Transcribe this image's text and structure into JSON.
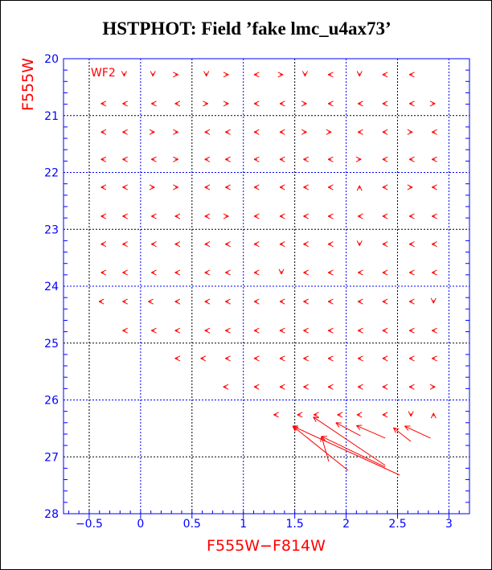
{
  "chart_data": {
    "type": "vector-field",
    "title": "HSTPHOT: Field ’fake lmc_u4ax73’",
    "xlabel": "F555W−F814W",
    "ylabel": "F555W",
    "annotation": "WF2",
    "xlim": [
      -0.75,
      3.2
    ],
    "ylim": [
      28,
      20
    ],
    "xticks": [
      "−0.5",
      "0",
      "0.5",
      "1",
      "1.5",
      "2",
      "2.5",
      "3"
    ],
    "xtick_values": [
      -0.5,
      0,
      0.5,
      1,
      1.5,
      2,
      2.5,
      3
    ],
    "yticks": [
      "20",
      "21",
      "22",
      "23",
      "24",
      "25",
      "26",
      "27",
      "28"
    ],
    "ytick_values": [
      20,
      21,
      22,
      23,
      24,
      25,
      26,
      27,
      28
    ],
    "grid": true,
    "colors": {
      "vectors": "#ff0000",
      "axes": "#0000ff",
      "grid_major": "#0000ff",
      "grid_minor": "#000000"
    },
    "short_vectors_by_row": [
      {
        "y": 20.28,
        "x": [
          -0.16,
          0.12,
          0.35,
          0.64,
          0.84,
          1.12,
          1.37,
          1.6,
          1.84,
          2.13,
          2.37,
          2.63
        ],
        "dir": "DDRDRLRDLDLL"
      },
      {
        "y": 20.79,
        "x": [
          -0.37,
          -0.16,
          0.12,
          0.35,
          0.64,
          0.84,
          1.12,
          1.37,
          1.6,
          1.84,
          2.13,
          2.37,
          2.63,
          2.85
        ],
        "dir": "LLLLRRLLRLLLLR"
      },
      {
        "y": 21.29,
        "x": [
          -0.37,
          -0.16,
          0.12,
          0.35,
          0.64,
          0.84,
          1.12,
          1.37,
          1.6,
          1.84,
          2.13,
          2.37,
          2.63,
          2.85
        ],
        "dir": "LLRRLLLLRRLLRL"
      },
      {
        "y": 21.77,
        "x": [
          -0.37,
          -0.16,
          0.12,
          0.35,
          0.64,
          0.84,
          1.12,
          1.37,
          1.6,
          1.84,
          2.13,
          2.37,
          2.63,
          2.85
        ],
        "dir": "LLLRLLLLLLRLLL"
      },
      {
        "y": 22.26,
        "x": [
          -0.37,
          -0.16,
          0.12,
          0.35,
          0.64,
          0.84,
          1.12,
          1.37,
          1.6,
          1.84,
          2.13,
          2.37,
          2.63,
          2.85
        ],
        "dir": "LLRRLLLLLLULRL"
      },
      {
        "y": 22.77,
        "x": [
          -0.37,
          -0.16,
          0.12,
          0.35,
          0.64,
          0.84,
          1.12,
          1.37,
          1.6,
          1.84,
          2.13,
          2.37,
          2.63,
          2.85
        ],
        "dir": "LLLLLRLLLLLLLL"
      },
      {
        "y": 23.26,
        "x": [
          -0.37,
          -0.16,
          0.12,
          0.35,
          0.64,
          0.84,
          1.12,
          1.37,
          1.6,
          1.84,
          2.13,
          2.37,
          2.63,
          2.85
        ],
        "dir": "LLLLLLLLLLDLLL"
      },
      {
        "y": 23.76,
        "x": [
          -0.37,
          -0.16,
          0.12,
          0.35,
          0.64,
          0.84,
          1.12,
          1.37,
          1.6,
          1.84,
          2.13,
          2.37,
          2.63,
          2.85
        ],
        "dir": "LLLLLLLDLLLLLL"
      },
      {
        "y": 24.27,
        "x": [
          -0.39,
          -0.16,
          0.09,
          0.35,
          0.64,
          0.84,
          1.12,
          1.37,
          1.6,
          1.84,
          2.13,
          2.37,
          2.63,
          2.85
        ],
        "dir": "LLLLLLLLLLLLLD"
      },
      {
        "y": 24.78,
        "x": [
          -0.16,
          0.12,
          0.35,
          0.64,
          0.84,
          1.12,
          1.37,
          1.6,
          1.84,
          2.13,
          2.37,
          2.63,
          2.85
        ],
        "dir": "LLLLLLLLLLLLL"
      },
      {
        "y": 25.27,
        "x": [
          0.35,
          0.6,
          0.84,
          1.12,
          1.37,
          1.6,
          1.84,
          2.13,
          2.37,
          2.63,
          2.85
        ],
        "dir": "LLLLLLLLLLL"
      },
      {
        "y": 25.77,
        "x": [
          0.82,
          1.12,
          1.37,
          1.6,
          1.84,
          2.13,
          2.37,
          2.63,
          2.85
        ],
        "dir": "LLLLLLLLR"
      },
      {
        "y": 26.26,
        "x": [
          1.31,
          1.54,
          1.7,
          1.93,
          2.12,
          2.37,
          2.63,
          2.85
        ],
        "dir": "LLLLLLDU"
      }
    ],
    "long_vectors": [
      {
        "from": [
          2.02,
          27.24
        ],
        "to": [
          1.48,
          26.46
        ]
      },
      {
        "from": [
          2.52,
          27.32
        ],
        "to": [
          1.48,
          26.46
        ]
      },
      {
        "from": [
          1.83,
          27.08
        ],
        "to": [
          1.76,
          26.64
        ]
      },
      {
        "from": [
          2.38,
          27.18
        ],
        "to": [
          1.76,
          26.64
        ]
      },
      {
        "from": [
          2.38,
          27.15
        ],
        "to": [
          1.68,
          26.3
        ]
      },
      {
        "from": [
          2.14,
          26.63
        ],
        "to": [
          1.9,
          26.4
        ]
      },
      {
        "from": [
          2.38,
          26.67
        ],
        "to": [
          2.1,
          26.45
        ]
      },
      {
        "from": [
          2.63,
          26.73
        ],
        "to": [
          2.46,
          26.49
        ]
      },
      {
        "from": [
          2.82,
          26.67
        ],
        "to": [
          2.57,
          26.46
        ]
      }
    ]
  }
}
